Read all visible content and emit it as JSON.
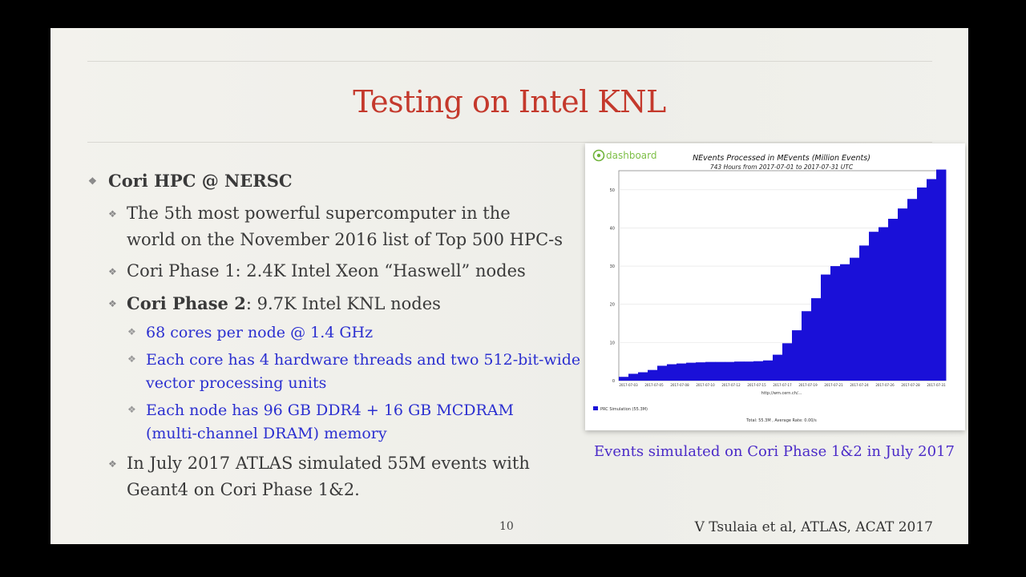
{
  "slide": {
    "title": "Testing on Intel KNL",
    "page_number": "10",
    "credit": "V Tsulaia et al, ATLAS, ACAT 2017",
    "caption": "Events simulated on Cori Phase 1&2 in July 2017"
  },
  "bullets": {
    "b1": "Cori HPC @ NERSC",
    "b1_1a": "The 5th most powerful supercomputer in the",
    "b1_1b": "world on the November 2016 list of Top 500 HPC-s",
    "b1_2": "Cori Phase 1: 2.4K Intel Xeon “Haswell” nodes",
    "b1_3_bold": "Cori Phase 2",
    "b1_3_rest": ": 9.7K Intel KNL nodes",
    "b1_3_1": "68 cores per node @ 1.4 GHz",
    "b1_3_2a": "Each core has 4 hardware threads and two 512-bit-wide",
    "b1_3_2b": "vector processing units",
    "b1_3_3a": "Each node has 96 GB DDR4 + 16 GB MCDRAM",
    "b1_3_3b": "(multi-channel DRAM) memory",
    "b1_4a": "In July 2017 ATLAS simulated 55M events with",
    "b1_4b": "Geant4 on Cori Phase 1&2."
  },
  "chart_data": {
    "type": "area",
    "brand": "dashboard",
    "title": "NEvents Processed in MEvents (Million Events)",
    "subtitle": "743 Hours from 2017-07-01 to 2017-07-31 UTC",
    "x_axis_note": "http://wm.cern.ch/...",
    "ylim": [
      0,
      55
    ],
    "yticks": [
      "0",
      "10",
      "20",
      "30",
      "40",
      "50"
    ],
    "x_tick_labels": [
      "2017-07-03",
      "2017-07-05",
      "2017-07-08",
      "2017-07-10",
      "2017-07-12",
      "2017-07-15",
      "2017-07-17",
      "2017-07-19",
      "2017-07-21",
      "2017-07-24",
      "2017-07-26",
      "2017-07-28",
      "2017-07-31"
    ],
    "series": [
      {
        "name": "PRC Simulation (55.3M)",
        "color": "#1a10d8",
        "values": [
          1.0,
          1.8,
          2.2,
          2.8,
          3.9,
          4.3,
          4.5,
          4.7,
          4.8,
          4.9,
          4.9,
          4.9,
          5.0,
          5.0,
          5.1,
          5.3,
          6.8,
          9.8,
          13.2,
          18.2,
          21.6,
          27.8,
          30.0,
          30.5,
          32.2,
          35.4,
          39.0,
          40.2,
          42.4,
          45.1,
          47.6,
          50.6,
          52.8,
          55.3
        ]
      }
    ],
    "footnote": "Total: 55.3M , Average Rate: 0.00/s"
  },
  "colors": {
    "title": "#c4392c",
    "sub_bullet": "#2b2fd0",
    "caption": "#4a2ac8",
    "series": "#1a10d8"
  }
}
